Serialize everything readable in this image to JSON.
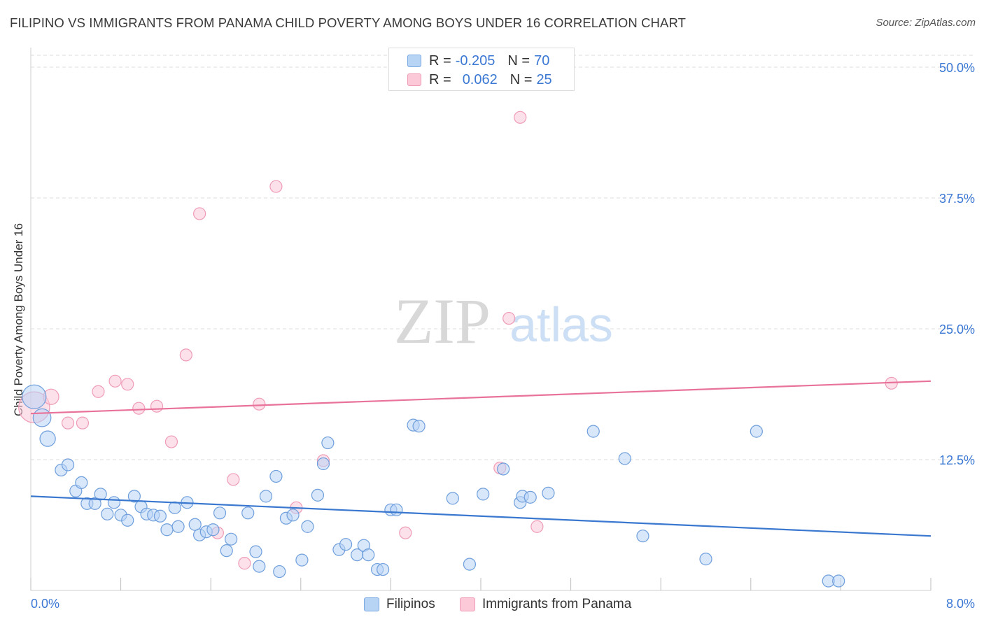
{
  "title": "FILIPINO VS IMMIGRANTS FROM PANAMA CHILD POVERTY AMONG BOYS UNDER 16 CORRELATION CHART",
  "source": "Source: ZipAtlas.com",
  "watermark": {
    "zip": "ZIP",
    "atlas": "atlas"
  },
  "legend_top": {
    "rows": [
      {
        "r_label": "R = ",
        "r_value": "-0.205",
        "n_label": "N = ",
        "n_value": "70"
      },
      {
        "r_label": "R = ",
        "r_value": "0.062",
        "n_label": "N = ",
        "n_value": "25"
      }
    ]
  },
  "legend_bottom": {
    "series1": "Filipinos",
    "series2": "Immigrants from Panama"
  },
  "colors": {
    "blue_fill": "#b8d4f5",
    "blue_stroke": "#6f9fdc",
    "blue_line": "#3a78d0",
    "pink_fill": "#fbc9d8",
    "pink_stroke": "#ef9cb6",
    "pink_line": "#e8729a",
    "tick_text": "#3b78d4",
    "grid": "#dcdcdc"
  },
  "chart_data": {
    "type": "scatter",
    "title": "FILIPINO VS IMMIGRANTS FROM PANAMA CHILD POVERTY AMONG BOYS UNDER 16 CORRELATION CHART",
    "xlabel": "",
    "ylabel": "Child Poverty Among Boys Under 16",
    "xlim": [
      0,
      8
    ],
    "ylim": [
      0,
      50
    ],
    "x_tick_labels": [
      {
        "value": 0,
        "label": "0.0%"
      },
      {
        "value": 8,
        "label": "8.0%"
      }
    ],
    "y_tick_labels": [
      {
        "value": 12.5,
        "label": "12.5%"
      },
      {
        "value": 25,
        "label": "25.0%"
      },
      {
        "value": 37.5,
        "label": "37.5%"
      },
      {
        "value": 50,
        "label": "50.0%"
      }
    ],
    "series": [
      {
        "name": "Filipinos",
        "r": -0.205,
        "n": 70,
        "trend": {
          "x0": 0,
          "y0": 9.0,
          "x1": 8,
          "y1": 5.2
        },
        "points": [
          [
            0.03,
            18.5,
            2.0
          ],
          [
            0.1,
            16.5,
            1.5
          ],
          [
            0.15,
            14.5,
            1.3
          ],
          [
            0.27,
            11.5,
            1.0
          ],
          [
            0.33,
            12.0,
            1.0
          ],
          [
            0.4,
            9.5,
            1.0
          ],
          [
            0.45,
            10.3,
            1.0
          ],
          [
            0.5,
            8.3,
            1.0
          ],
          [
            0.57,
            8.3,
            1.0
          ],
          [
            0.62,
            9.2,
            1.0
          ],
          [
            0.68,
            7.3,
            1.0
          ],
          [
            0.74,
            8.4,
            1.0
          ],
          [
            0.8,
            7.2,
            1.0
          ],
          [
            0.86,
            6.7,
            1.0
          ],
          [
            0.92,
            9.0,
            1.0
          ],
          [
            0.98,
            8.0,
            1.0
          ],
          [
            1.03,
            7.3,
            1.0
          ],
          [
            1.09,
            7.2,
            1.0
          ],
          [
            1.15,
            7.1,
            1.0
          ],
          [
            1.21,
            5.8,
            1.0
          ],
          [
            1.28,
            7.9,
            1.0
          ],
          [
            1.31,
            6.1,
            1.0
          ],
          [
            1.39,
            8.4,
            1.0
          ],
          [
            1.46,
            6.3,
            1.0
          ],
          [
            1.5,
            5.3,
            1.0
          ],
          [
            1.56,
            5.6,
            1.0
          ],
          [
            1.62,
            5.8,
            1.0
          ],
          [
            1.68,
            7.4,
            1.0
          ],
          [
            1.74,
            3.8,
            1.0
          ],
          [
            1.78,
            4.9,
            1.0
          ],
          [
            1.93,
            7.4,
            1.0
          ],
          [
            2.0,
            3.7,
            1.0
          ],
          [
            2.03,
            2.3,
            1.0
          ],
          [
            2.09,
            9.0,
            1.0
          ],
          [
            2.18,
            10.9,
            1.0
          ],
          [
            2.21,
            1.8,
            1.0
          ],
          [
            2.27,
            6.9,
            1.0
          ],
          [
            2.33,
            7.2,
            1.0
          ],
          [
            2.41,
            2.9,
            1.0
          ],
          [
            2.46,
            6.1,
            1.0
          ],
          [
            2.55,
            9.1,
            1.0
          ],
          [
            2.6,
            12.1,
            1.0
          ],
          [
            2.64,
            14.1,
            1.0
          ],
          [
            2.74,
            3.9,
            1.0
          ],
          [
            2.8,
            4.4,
            1.0
          ],
          [
            2.9,
            3.4,
            1.0
          ],
          [
            2.96,
            4.3,
            1.0
          ],
          [
            3.0,
            3.4,
            1.0
          ],
          [
            3.08,
            2.0,
            1.0
          ],
          [
            3.13,
            2.0,
            1.0
          ],
          [
            3.2,
            7.7,
            1.0
          ],
          [
            3.25,
            7.7,
            1.0
          ],
          [
            3.4,
            15.8,
            1.0
          ],
          [
            3.45,
            15.7,
            1.0
          ],
          [
            3.75,
            8.8,
            1.0
          ],
          [
            3.9,
            2.5,
            1.0
          ],
          [
            4.02,
            9.2,
            1.0
          ],
          [
            4.2,
            11.6,
            1.0
          ],
          [
            4.35,
            8.4,
            1.0
          ],
          [
            4.37,
            9.0,
            1.0
          ],
          [
            4.44,
            8.9,
            1.0
          ],
          [
            4.6,
            9.3,
            1.0
          ],
          [
            5.0,
            15.2,
            1.0
          ],
          [
            5.28,
            12.6,
            1.0
          ],
          [
            5.44,
            5.2,
            1.0
          ],
          [
            6.0,
            3.0,
            1.0
          ],
          [
            6.45,
            15.2,
            1.0
          ],
          [
            7.09,
            0.9,
            1.0
          ],
          [
            7.18,
            0.9,
            1.0
          ]
        ]
      },
      {
        "name": "Immigrants from Panama",
        "r": 0.062,
        "n": 25,
        "trend": {
          "x0": 0,
          "y0": 16.9,
          "x1": 8,
          "y1": 20.0
        },
        "points": [
          [
            0.03,
            17.5,
            2.6
          ],
          [
            0.18,
            18.5,
            1.3
          ],
          [
            0.33,
            16.0,
            1.0
          ],
          [
            0.46,
            16.0,
            1.0
          ],
          [
            0.6,
            19.0,
            1.0
          ],
          [
            0.75,
            20.0,
            1.0
          ],
          [
            0.86,
            19.7,
            1.0
          ],
          [
            0.96,
            17.4,
            1.0
          ],
          [
            1.12,
            17.6,
            1.0
          ],
          [
            1.25,
            14.2,
            1.0
          ],
          [
            1.38,
            22.5,
            1.0
          ],
          [
            1.5,
            36.0,
            1.0
          ],
          [
            1.66,
            5.5,
            1.0
          ],
          [
            1.8,
            10.6,
            1.0
          ],
          [
            1.9,
            2.6,
            1.0
          ],
          [
            2.03,
            17.8,
            1.0
          ],
          [
            2.18,
            38.6,
            1.0
          ],
          [
            2.36,
            7.9,
            1.0
          ],
          [
            2.6,
            12.4,
            1.0
          ],
          [
            3.33,
            5.5,
            1.0
          ],
          [
            4.17,
            11.7,
            1.0
          ],
          [
            4.25,
            26.0,
            1.0
          ],
          [
            4.35,
            45.2,
            1.0
          ],
          [
            4.5,
            6.1,
            1.0
          ],
          [
            7.65,
            19.8,
            1.0
          ]
        ]
      }
    ]
  }
}
